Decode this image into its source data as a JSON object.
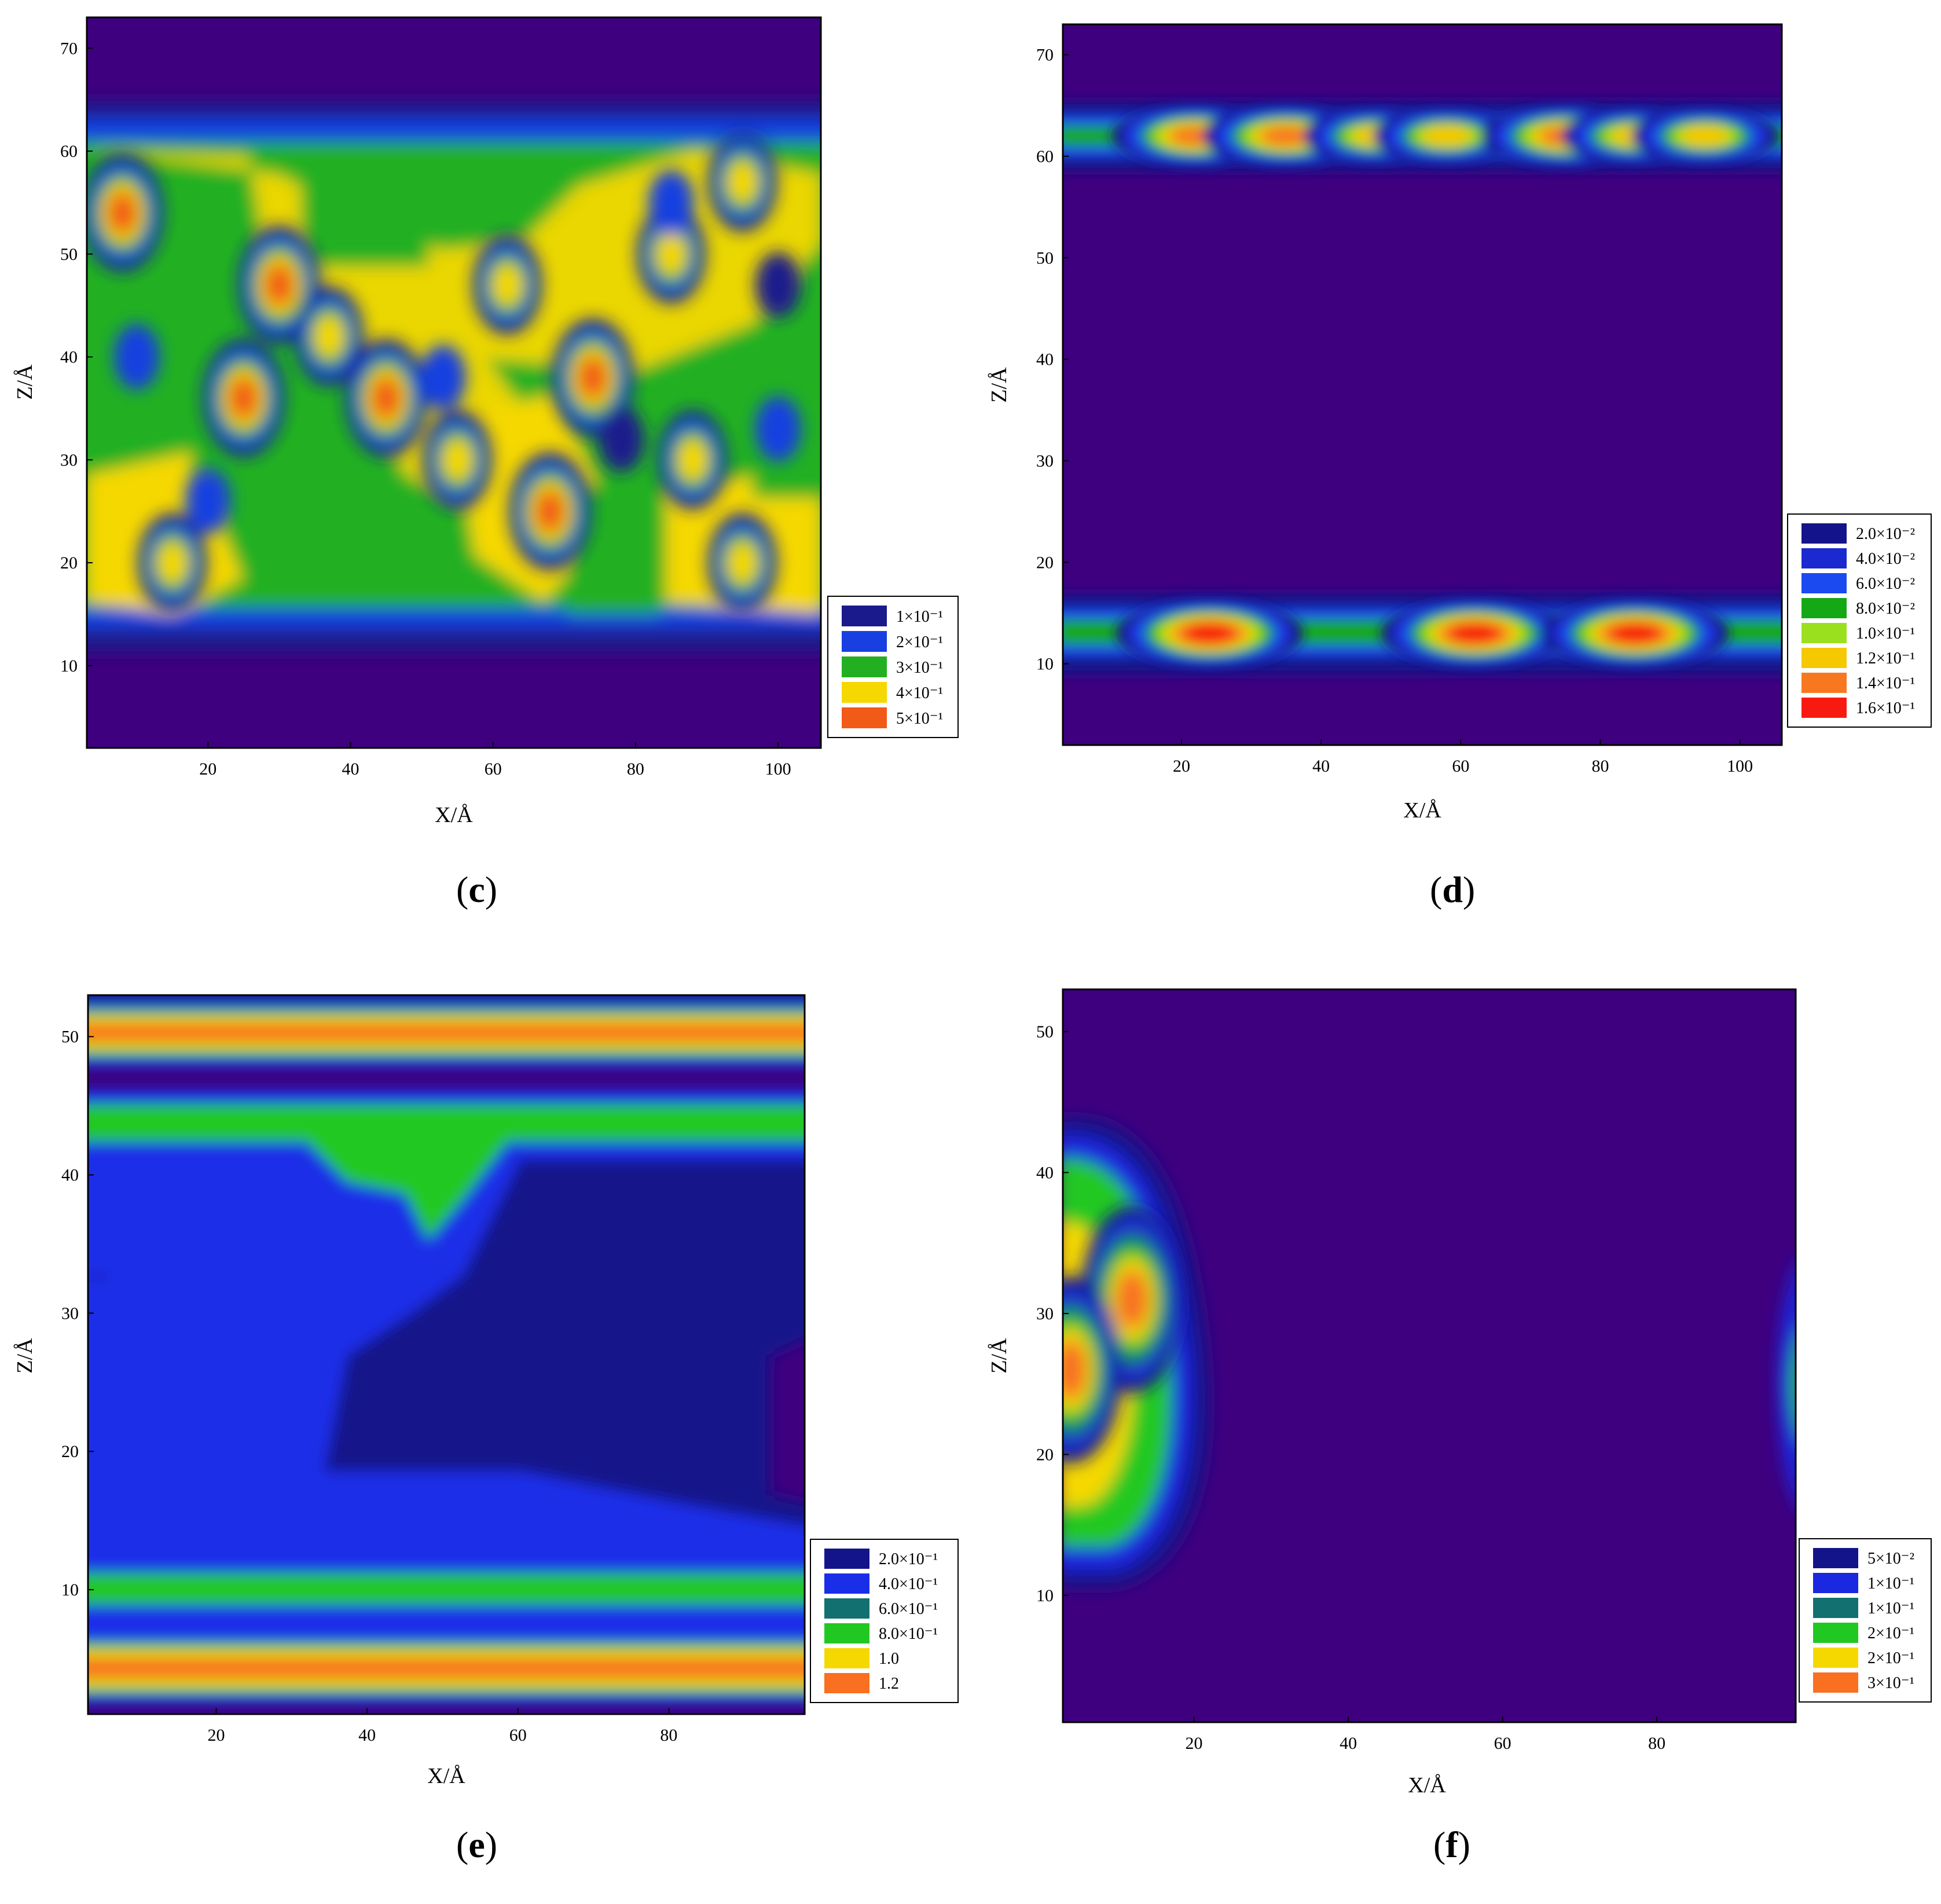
{
  "panels": [
    {
      "label": "c",
      "xlabel": "X/Å",
      "ylabel": "Z/Å",
      "xticks": [
        20,
        40,
        60,
        80,
        100
      ],
      "yticks": [
        10,
        20,
        30,
        40,
        50,
        60,
        70
      ],
      "legend": [
        "1×10⁻¹",
        "2×10⁻¹",
        "3×10⁻¹",
        "4×10⁻¹",
        "5×10⁻¹"
      ]
    },
    {
      "label": "d",
      "xlabel": "X/Å",
      "ylabel": "Z/Å",
      "xticks": [
        20,
        40,
        60,
        80,
        100
      ],
      "yticks": [
        10,
        20,
        30,
        40,
        50,
        60,
        70
      ],
      "legend": [
        "2.0×10⁻²",
        "4.0×10⁻²",
        "6.0×10⁻²",
        "8.0×10⁻²",
        "1.0×10⁻¹",
        "1.2×10⁻¹",
        "1.4×10⁻¹",
        "1.6×10⁻¹"
      ]
    },
    {
      "label": "e",
      "xlabel": "X/Å",
      "ylabel": "Z/Å",
      "xticks": [
        20,
        40,
        60,
        80
      ],
      "yticks": [
        10,
        20,
        30,
        40,
        50
      ],
      "legend": [
        "2.0×10⁻¹",
        "4.0×10⁻¹",
        "6.0×10⁻¹",
        "8.0×10⁻¹",
        "1.0",
        "1.2"
      ]
    },
    {
      "label": "f",
      "xlabel": "X/Å",
      "ylabel": "Z/Å",
      "xticks": [
        20,
        40,
        60,
        80
      ],
      "yticks": [
        10,
        20,
        30,
        40,
        50
      ],
      "legend": [
        "5×10⁻²",
        "1×10⁻¹",
        "1×10⁻¹",
        "2×10⁻¹",
        "2×10⁻¹",
        "3×10⁻¹"
      ]
    }
  ],
  "chart_data": [
    {
      "type": "heatmap",
      "panel": "c",
      "xlabel": "X/Å",
      "ylabel": "Z/Å",
      "xlim": [
        3,
        106
      ],
      "ylim": [
        2,
        73
      ],
      "background_value": 0,
      "colorscale": [
        {
          "value": 0.1,
          "color": "#1a1a8c",
          "label": "1×10⁻¹"
        },
        {
          "value": 0.2,
          "color": "#1840e0",
          "label": "2×10⁻¹"
        },
        {
          "value": 0.3,
          "color": "#22b022",
          "label": "3×10⁻¹"
        },
        {
          "value": 0.4,
          "color": "#f5d800",
          "label": "4×10⁻¹"
        },
        {
          "value": 0.5,
          "color": "#f25a18",
          "label": "5×10⁻¹"
        }
      ],
      "features": [
        {
          "kind": "band",
          "z": [
            16,
            60
          ],
          "value": 0.33
        },
        {
          "kind": "spot",
          "x": 8,
          "z": 54,
          "value": 0.5
        },
        {
          "kind": "spot",
          "x": 30,
          "z": 47,
          "value": 0.55
        },
        {
          "kind": "spot",
          "x": 25,
          "z": 36,
          "value": 0.5
        },
        {
          "kind": "spot",
          "x": 45,
          "z": 36,
          "value": 0.55
        },
        {
          "kind": "spot",
          "x": 37,
          "z": 42,
          "value": 0.45
        },
        {
          "kind": "spot",
          "x": 74,
          "z": 38,
          "value": 0.55
        },
        {
          "kind": "spot",
          "x": 68,
          "z": 25,
          "value": 0.55
        },
        {
          "kind": "spot",
          "x": 15,
          "z": 20,
          "value": 0.45
        },
        {
          "kind": "spot",
          "x": 95,
          "z": 20,
          "value": 0.45
        },
        {
          "kind": "spot",
          "x": 62,
          "z": 47,
          "value": 0.45
        },
        {
          "kind": "spot",
          "x": 88,
          "z": 30,
          "value": 0.45
        },
        {
          "kind": "spot",
          "x": 95,
          "z": 57,
          "value": 0.45
        },
        {
          "kind": "spot",
          "x": 85,
          "z": 50,
          "value": 0.45
        },
        {
          "kind": "spot",
          "x": 55,
          "z": 30,
          "value": 0.4
        },
        {
          "kind": "hole",
          "x": 100,
          "z": 47,
          "value": 0.15
        },
        {
          "kind": "hole",
          "x": 78,
          "z": 32,
          "value": 0.18
        },
        {
          "kind": "hole",
          "x": 10,
          "z": 40,
          "value": 0.2
        },
        {
          "kind": "hole",
          "x": 20,
          "z": 26,
          "value": 0.2
        },
        {
          "kind": "hole",
          "x": 53,
          "z": 38,
          "value": 0.2
        },
        {
          "kind": "hole",
          "x": 85,
          "z": 55,
          "value": 0.2
        },
        {
          "kind": "hole",
          "x": 100,
          "z": 33,
          "value": 0.25
        }
      ]
    },
    {
      "type": "heatmap",
      "panel": "d",
      "xlabel": "X/Å",
      "ylabel": "Z/Å",
      "xlim": [
        3,
        106
      ],
      "ylim": [
        2,
        73
      ],
      "background_value": 0,
      "colorscale": [
        {
          "value": 0.02,
          "color": "#14148a",
          "label": "2.0×10⁻²"
        },
        {
          "value": 0.04,
          "color": "#1a2ad0",
          "label": "4.0×10⁻²"
        },
        {
          "value": 0.06,
          "color": "#1a4af0",
          "label": "6.0×10⁻²"
        },
        {
          "value": 0.08,
          "color": "#14a814",
          "label": "8.0×10⁻²"
        },
        {
          "value": 0.1,
          "color": "#9ae01e",
          "label": "1.0×10⁻¹"
        },
        {
          "value": 0.12,
          "color": "#f5c800",
          "label": "1.2×10⁻¹"
        },
        {
          "value": 0.14,
          "color": "#f87820",
          "label": "1.4×10⁻¹"
        },
        {
          "value": 0.16,
          "color": "#f81a10",
          "label": "1.6×10⁻¹"
        }
      ],
      "features": [
        {
          "kind": "band",
          "z": [
            62,
            62
          ],
          "value": 0.09
        },
        {
          "kind": "band",
          "z": [
            13,
            13
          ],
          "value": 0.07
        },
        {
          "kind": "spot",
          "x": 22,
          "z": 62,
          "value": 0.14
        },
        {
          "kind": "spot",
          "x": 35,
          "z": 62,
          "value": 0.14
        },
        {
          "kind": "spot",
          "x": 48,
          "z": 62,
          "value": 0.13
        },
        {
          "kind": "spot",
          "x": 58,
          "z": 62,
          "value": 0.12
        },
        {
          "kind": "spot",
          "x": 75,
          "z": 62,
          "value": 0.14
        },
        {
          "kind": "spot",
          "x": 85,
          "z": 62,
          "value": 0.13
        },
        {
          "kind": "spot",
          "x": 95,
          "z": 62,
          "value": 0.12
        },
        {
          "kind": "spot",
          "x": 24,
          "z": 13,
          "value": 0.16
        },
        {
          "kind": "spot",
          "x": 62,
          "z": 13,
          "value": 0.16
        },
        {
          "kind": "spot",
          "x": 85,
          "z": 13,
          "value": 0.16
        }
      ]
    },
    {
      "type": "heatmap",
      "panel": "e",
      "xlabel": "X/Å",
      "ylabel": "Z/Å",
      "xlim": [
        3,
        98
      ],
      "ylim": [
        1,
        53
      ],
      "background_value": 0,
      "colorscale": [
        {
          "value": 0.2,
          "color": "#14148a",
          "label": "2.0×10⁻¹"
        },
        {
          "value": 0.4,
          "color": "#1a2ee8",
          "label": "4.0×10⁻¹"
        },
        {
          "value": 0.6,
          "color": "#127070",
          "label": "6.0×10⁻¹"
        },
        {
          "value": 0.8,
          "color": "#22c822",
          "label": "8.0×10⁻¹"
        },
        {
          "value": 1.0,
          "color": "#f5d800",
          "label": "1.0"
        },
        {
          "value": 1.2,
          "color": "#f87020",
          "label": "1.2"
        }
      ],
      "features": [
        {
          "kind": "band",
          "z": [
            50,
            50
          ],
          "value": 1.3
        },
        {
          "kind": "band",
          "z": [
            4,
            4
          ],
          "value": 1.3
        },
        {
          "kind": "band",
          "z": [
            44.5,
            44.5
          ],
          "value": 0.85
        },
        {
          "kind": "band",
          "z": [
            9.5,
            9.5
          ],
          "value": 0.85
        },
        {
          "kind": "region",
          "z": [
            12,
            43
          ],
          "value": 0.3
        }
      ]
    },
    {
      "type": "heatmap",
      "panel": "f",
      "xlabel": "X/Å",
      "ylabel": "Z/Å",
      "xlim": [
        3,
        98
      ],
      "ylim": [
        1,
        53
      ],
      "background_value": 0,
      "colorscale": [
        {
          "value": 0.05,
          "color": "#14148a",
          "label": "5×10⁻²"
        },
        {
          "value": 0.1,
          "color": "#1a28e0",
          "label": "1×10⁻¹"
        },
        {
          "value": 0.15,
          "color": "#127070",
          "label": "1×10⁻¹"
        },
        {
          "value": 0.2,
          "color": "#22c822",
          "label": "2×10⁻¹"
        },
        {
          "value": 0.25,
          "color": "#f5d800",
          "label": "2×10⁻¹"
        },
        {
          "value": 0.3,
          "color": "#f87020",
          "label": "3×10⁻¹"
        }
      ],
      "features": [
        {
          "kind": "blob",
          "x": 8,
          "z": 27,
          "value": 0.3
        },
        {
          "kind": "spot",
          "x": 12,
          "z": 31,
          "value": 0.3
        },
        {
          "kind": "spot",
          "x": 4,
          "z": 26,
          "value": 0.3
        },
        {
          "kind": "blob",
          "x": 98,
          "z": 24,
          "value": 0.2
        }
      ]
    }
  ]
}
